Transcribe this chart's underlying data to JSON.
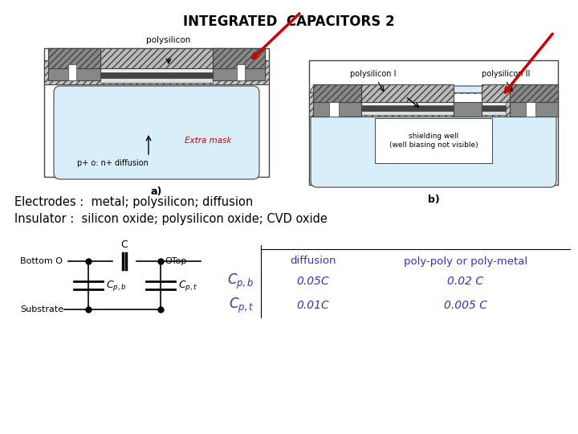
{
  "title": "INTEGRATED  CAPACITORS 2",
  "title_fontsize": 12,
  "title_fontweight": "bold",
  "electrodes_text": "Electrodes :  metal; polysilicon; diffusion",
  "insulator_text": "Insulator :  silicon oxide; polysilicon oxide; CVD oxide",
  "label_a": "a)",
  "label_b": "b)",
  "poly_label_a": "polysilicon",
  "poly_label_b1": "polysilicon I",
  "poly_label_b2": "polysilicon II",
  "diff_label": "p+ o: n+ diffusion",
  "extra_mask_label": "Extra mask",
  "shield_label": "shielding well\n(well biasing not visible)",
  "table_col1": "diffusion",
  "table_col2": "poly-poly or poly-metal",
  "row1_col1": "0.05C",
  "row1_col2": "0.02 C",
  "row2_col1": "0.01C",
  "row2_col2": "0.005 C",
  "blue_color": "#3333bb",
  "red_color": "#cc0000",
  "light_blue": "#d8eef8",
  "hatch_gray": "#aaaaaa",
  "dark_gray": "#555555",
  "mid_gray": "#888888",
  "bg_color": "#ffffff",
  "line_color": "#444444"
}
